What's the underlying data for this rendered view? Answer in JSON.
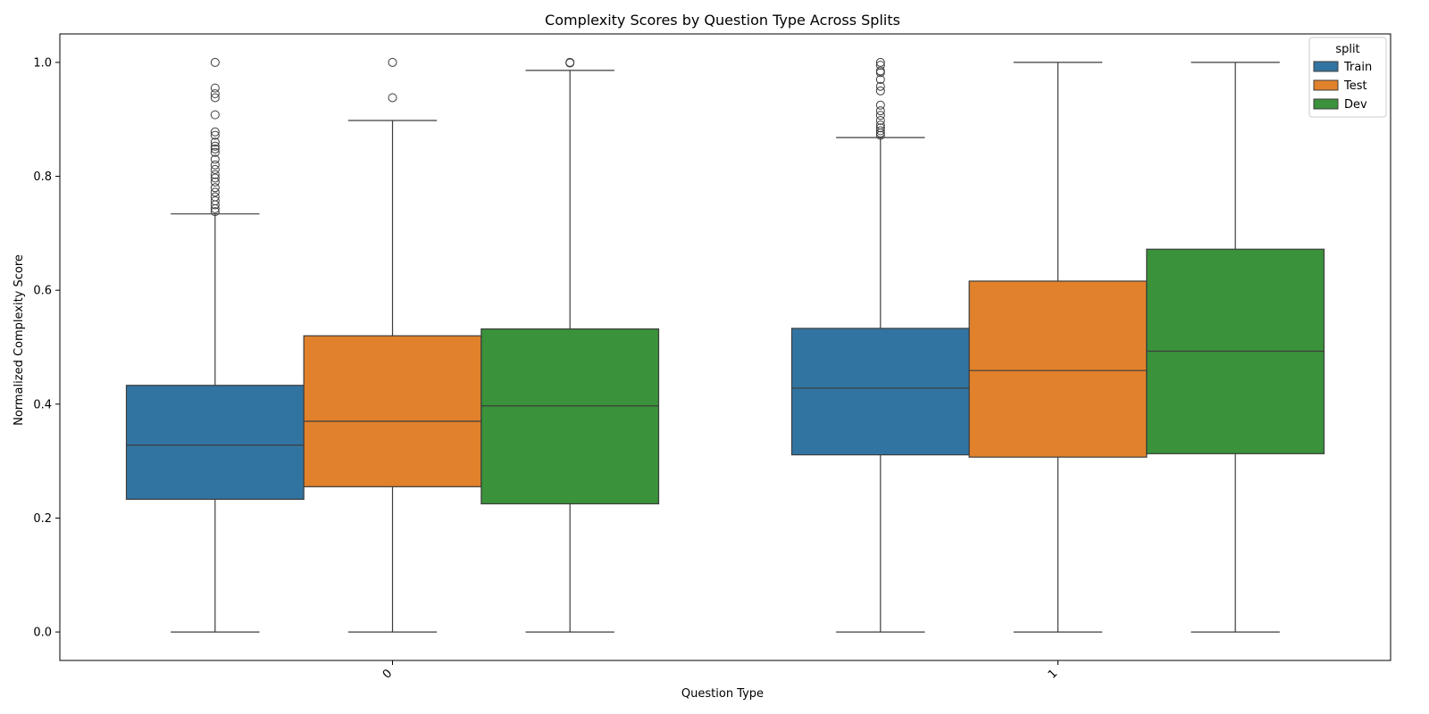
{
  "chart_data": {
    "type": "box",
    "title": "Complexity Scores by Question Type Across Splits",
    "xlabel": "Question Type",
    "ylabel": "Normalized Complexity Score",
    "categories": [
      "0",
      "1"
    ],
    "ylim": [
      -0.05,
      1.05
    ],
    "yticks": [
      0.0,
      0.2,
      0.4,
      0.6,
      0.8,
      1.0
    ],
    "ytick_labels": [
      "0.0",
      "0.2",
      "0.4",
      "0.6",
      "0.8",
      "1.0"
    ],
    "grid": false,
    "legend": {
      "title": "split",
      "placement": "top-right"
    },
    "series": [
      {
        "name": "Train",
        "color": "#3274a1",
        "boxes": [
          {
            "whislo": 0.0,
            "q1": 0.233,
            "med": 0.328,
            "q3": 0.433,
            "whishi": 0.734,
            "fliers": [
              1.0,
              0.955,
              0.945,
              0.938,
              0.908,
              0.878,
              0.872,
              0.86,
              0.853,
              0.848,
              0.842,
              0.83,
              0.82,
              0.812,
              0.803,
              0.797,
              0.79,
              0.78,
              0.772,
              0.764,
              0.757,
              0.75,
              0.743,
              0.738
            ]
          },
          {
            "whislo": 0.0,
            "q1": 0.311,
            "med": 0.428,
            "q3": 0.533,
            "whishi": 0.868,
            "fliers": [
              1.0,
              0.995,
              0.985,
              0.982,
              0.97,
              0.958,
              0.95,
              0.925,
              0.915,
              0.907,
              0.898,
              0.89,
              0.885,
              0.88,
              0.876,
              0.872
            ]
          }
        ]
      },
      {
        "name": "Test",
        "color": "#e1812c",
        "boxes": [
          {
            "whislo": 0.0,
            "q1": 0.255,
            "med": 0.37,
            "q3": 0.52,
            "whishi": 0.898,
            "fliers": [
              1.0,
              0.938
            ]
          },
          {
            "whislo": 0.0,
            "q1": 0.307,
            "med": 0.459,
            "q3": 0.616,
            "whishi": 1.0,
            "fliers": []
          }
        ]
      },
      {
        "name": "Dev",
        "color": "#3a923a",
        "boxes": [
          {
            "whislo": 0.0,
            "q1": 0.225,
            "med": 0.397,
            "q3": 0.532,
            "whishi": 0.986,
            "fliers": [
              1.0,
              0.999
            ]
          },
          {
            "whislo": 0.0,
            "q1": 0.313,
            "med": 0.493,
            "q3": 0.672,
            "whishi": 1.0,
            "fliers": []
          }
        ]
      }
    ]
  }
}
